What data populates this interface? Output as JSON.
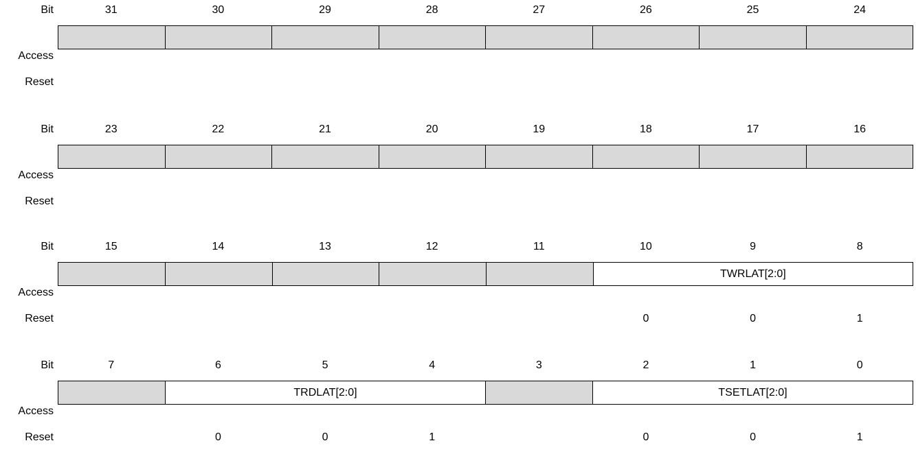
{
  "labels": {
    "bit": "Bit",
    "access": "Access",
    "reset": "Reset"
  },
  "colors": {
    "reserved_fill": "#d9d9d9",
    "field_fill": "#ffffff",
    "border": "#000000"
  },
  "groups": [
    {
      "bits": [
        "31",
        "30",
        "29",
        "28",
        "27",
        "26",
        "25",
        "24"
      ],
      "fields": [
        {
          "name": "",
          "span": 1,
          "reserved": true
        },
        {
          "name": "",
          "span": 1,
          "reserved": true
        },
        {
          "name": "",
          "span": 1,
          "reserved": true
        },
        {
          "name": "",
          "span": 1,
          "reserved": true
        },
        {
          "name": "",
          "span": 1,
          "reserved": true
        },
        {
          "name": "",
          "span": 1,
          "reserved": true
        },
        {
          "name": "",
          "span": 1,
          "reserved": true
        },
        {
          "name": "",
          "span": 1,
          "reserved": true
        }
      ],
      "reset": [
        "",
        "",
        "",
        "",
        "",
        "",
        "",
        ""
      ]
    },
    {
      "bits": [
        "23",
        "22",
        "21",
        "20",
        "19",
        "18",
        "17",
        "16"
      ],
      "fields": [
        {
          "name": "",
          "span": 1,
          "reserved": true
        },
        {
          "name": "",
          "span": 1,
          "reserved": true
        },
        {
          "name": "",
          "span": 1,
          "reserved": true
        },
        {
          "name": "",
          "span": 1,
          "reserved": true
        },
        {
          "name": "",
          "span": 1,
          "reserved": true
        },
        {
          "name": "",
          "span": 1,
          "reserved": true
        },
        {
          "name": "",
          "span": 1,
          "reserved": true
        },
        {
          "name": "",
          "span": 1,
          "reserved": true
        }
      ],
      "reset": [
        "",
        "",
        "",
        "",
        "",
        "",
        "",
        ""
      ]
    },
    {
      "bits": [
        "15",
        "14",
        "13",
        "12",
        "11",
        "10",
        "9",
        "8"
      ],
      "fields": [
        {
          "name": "",
          "span": 1,
          "reserved": true
        },
        {
          "name": "",
          "span": 1,
          "reserved": true
        },
        {
          "name": "",
          "span": 1,
          "reserved": true
        },
        {
          "name": "",
          "span": 1,
          "reserved": true
        },
        {
          "name": "",
          "span": 1,
          "reserved": true
        },
        {
          "name": "TWRLAT[2:0]",
          "span": 3,
          "reserved": false
        }
      ],
      "reset": [
        "",
        "",
        "",
        "",
        "",
        "0",
        "0",
        "1"
      ]
    },
    {
      "bits": [
        "7",
        "6",
        "5",
        "4",
        "3",
        "2",
        "1",
        "0"
      ],
      "fields": [
        {
          "name": "",
          "span": 1,
          "reserved": true
        },
        {
          "name": "TRDLAT[2:0]",
          "span": 3,
          "reserved": false
        },
        {
          "name": "",
          "span": 1,
          "reserved": true
        },
        {
          "name": "TSETLAT[2:0]",
          "span": 3,
          "reserved": false
        }
      ],
      "reset": [
        "",
        "0",
        "0",
        "1",
        "",
        "0",
        "0",
        "1"
      ]
    }
  ]
}
